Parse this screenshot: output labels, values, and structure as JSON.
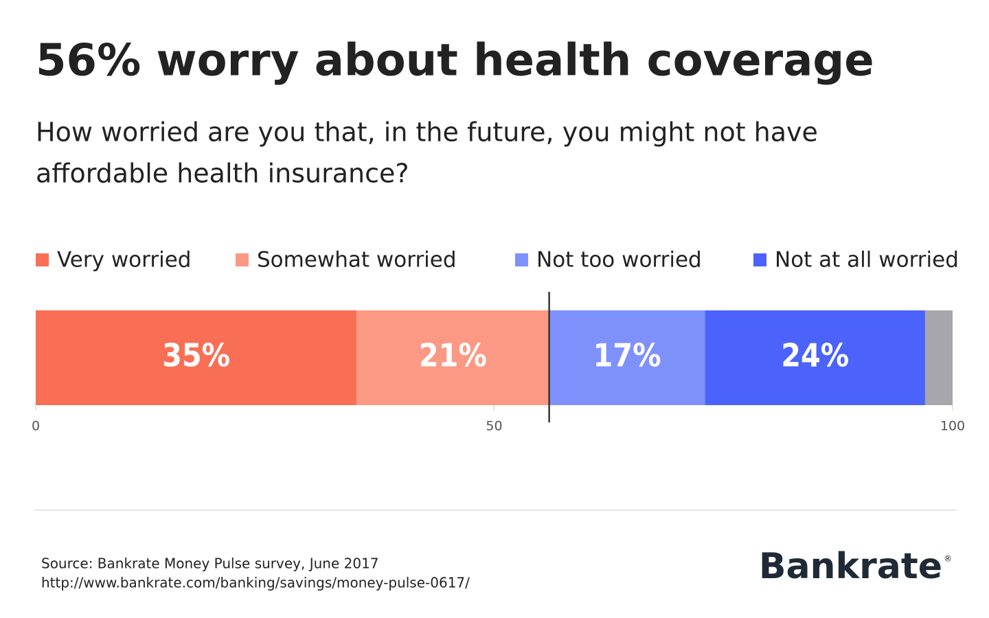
{
  "chart_data": {
    "type": "stacked_bar",
    "title": "56% worry about health coverage",
    "subtitle": [
      "How worried are you that, in the future, you might not have",
      "affordable health insurance?"
    ],
    "series": [
      {
        "name": "Very worried",
        "color": "#f96f55",
        "values": [
          35
        ],
        "value_labels": [
          "35%"
        ]
      },
      {
        "name": "Somewhat worried",
        "color": "#fb9985",
        "values": [
          21
        ],
        "value_labels": [
          "21%"
        ]
      },
      {
        "name": "Not too worried",
        "color": "#7f91fd",
        "values": [
          17
        ],
        "value_labels": [
          "17%"
        ]
      },
      {
        "name": "Not at all worried",
        "color": "#4b63fb",
        "values": [
          24
        ],
        "value_labels": [
          "24%"
        ]
      },
      {
        "color": "#a7a7ab",
        "values": [
          3
        ]
      }
    ],
    "reference_line": 56,
    "xlim": [
      0,
      100
    ],
    "xticks": [
      0,
      50,
      100
    ],
    "source": [
      "Source: Bankrate Money Pulse survey, June 2017",
      "http://www.bankrate.com/banking/savings/money-pulse-0617/"
    ],
    "brand": "Bankrate",
    "brand_mark": "®"
  }
}
